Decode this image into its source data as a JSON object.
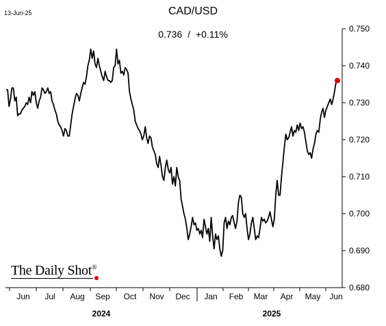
{
  "date_label": "13-Jun-25",
  "chart_data": {
    "type": "line",
    "title": "CAD/USD",
    "subtitle_value": "0.736",
    "subtitle_sep": "/",
    "subtitle_change": "+0.11%",
    "xlabel": "",
    "ylabel": "",
    "ylim": [
      0.68,
      0.75
    ],
    "yticks": [
      "0.750",
      "0.740",
      "0.730",
      "0.720",
      "0.710",
      "0.700",
      "0.690",
      "0.680"
    ],
    "ytick_values": [
      0.75,
      0.74,
      0.73,
      0.72,
      0.71,
      0.7,
      0.69,
      0.68
    ],
    "month_labels": [
      "Jun",
      "Jul",
      "Aug",
      "Sep",
      "Oct",
      "Nov",
      "Dec",
      "Jan",
      "Feb",
      "Mar",
      "Apr",
      "May",
      "Jun"
    ],
    "year_labels": [
      "2024",
      "2025"
    ],
    "grid": false,
    "line_color": "#000000",
    "last_point_color": "#e00000",
    "series": [
      {
        "name": "",
        "values": [
          0.7335,
          0.7335,
          0.729,
          0.731,
          0.734,
          0.734,
          0.7305,
          0.7315,
          0.7265,
          0.727,
          0.727,
          0.728,
          0.7285,
          0.729,
          0.73,
          0.7295,
          0.7315,
          0.73,
          0.733,
          0.732,
          0.733,
          0.73,
          0.7285,
          0.7305,
          0.7315,
          0.734,
          0.7335,
          0.7325,
          0.733,
          0.734,
          0.7325,
          0.733,
          0.7305,
          0.7295,
          0.728,
          0.727,
          0.725,
          0.724,
          0.7235,
          0.7225,
          0.721,
          0.723,
          0.7225,
          0.721,
          0.721,
          0.724,
          0.727,
          0.729,
          0.731,
          0.7325,
          0.732,
          0.7305,
          0.7325,
          0.734,
          0.7355,
          0.735,
          0.737,
          0.74,
          0.7415,
          0.7445,
          0.742,
          0.744,
          0.7405,
          0.7395,
          0.742,
          0.74,
          0.7385,
          0.737,
          0.736,
          0.7385,
          0.737,
          0.736,
          0.736,
          0.7355,
          0.736,
          0.7395,
          0.74,
          0.7445,
          0.7405,
          0.7415,
          0.738,
          0.7385,
          0.7375,
          0.7395,
          0.739,
          0.738,
          0.733,
          0.731,
          0.7295,
          0.728,
          0.725,
          0.724,
          0.723,
          0.7225,
          0.7215,
          0.72,
          0.721,
          0.7235,
          0.7205,
          0.719,
          0.721,
          0.7205,
          0.718,
          0.717,
          0.716,
          0.7135,
          0.7125,
          0.7155,
          0.713,
          0.71,
          0.709,
          0.7125,
          0.7145,
          0.712,
          0.711,
          0.7125,
          0.708,
          0.71,
          0.7075,
          0.7125,
          0.71,
          0.709,
          0.704,
          0.702,
          0.7,
          0.6985,
          0.696,
          0.693,
          0.6945,
          0.6965,
          0.699,
          0.697,
          0.6975,
          0.6955,
          0.696,
          0.6945,
          0.6955,
          0.6935,
          0.6985,
          0.6965,
          0.6945,
          0.696,
          0.6925,
          0.699,
          0.694,
          0.6905,
          0.6945,
          0.693,
          0.694,
          0.6905,
          0.6885,
          0.69,
          0.6975,
          0.699,
          0.696,
          0.698,
          0.697,
          0.699,
          0.6995,
          0.6975,
          0.696,
          0.698,
          0.703,
          0.705,
          0.7045,
          0.7,
          0.699,
          0.7,
          0.696,
          0.693,
          0.6945,
          0.6975,
          0.699,
          0.696,
          0.693,
          0.694,
          0.6935,
          0.696,
          0.699,
          0.698,
          0.6985,
          0.6975,
          0.698,
          0.699,
          0.7005,
          0.6985,
          0.6965,
          0.6985,
          0.705,
          0.709,
          0.705,
          0.705,
          0.71,
          0.714,
          0.718,
          0.7215,
          0.72,
          0.7205,
          0.722,
          0.7235,
          0.721,
          0.7225,
          0.722,
          0.724,
          0.7225,
          0.7245,
          0.723,
          0.7235,
          0.722,
          0.7195,
          0.717,
          0.716,
          0.7165,
          0.715,
          0.7175,
          0.719,
          0.7215,
          0.7225,
          0.722,
          0.7255,
          0.7275,
          0.7285,
          0.726,
          0.728,
          0.729,
          0.73,
          0.731,
          0.7295,
          0.731,
          0.733,
          0.7355,
          0.736
        ]
      }
    ]
  }
}
